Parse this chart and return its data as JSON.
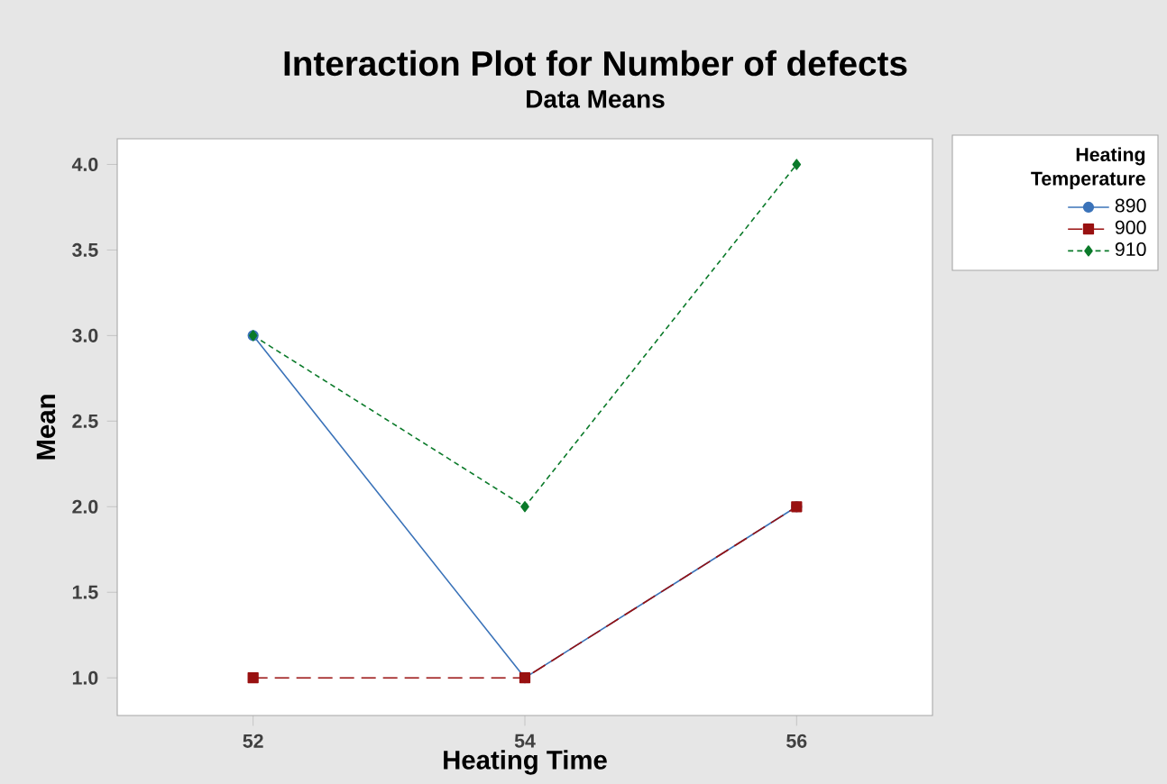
{
  "chart_data": {
    "type": "line",
    "title": "Interaction Plot for Number of defects",
    "subtitle": "Data Means",
    "xlabel": "Heating Time",
    "ylabel": "Mean",
    "legend_title": "Heating Temperature",
    "x": [
      52,
      54,
      56
    ],
    "series": [
      {
        "name": "890",
        "color": "#3b73b9",
        "values": [
          3,
          1,
          2
        ],
        "marker": "circle",
        "line_style": "solid"
      },
      {
        "name": "900",
        "color": "#991111",
        "values": [
          1,
          1,
          2
        ],
        "marker": "square",
        "line_style": "dashed"
      },
      {
        "name": "910",
        "color": "#0b7a2a",
        "values": [
          3,
          2,
          4
        ],
        "marker": "diamond",
        "line_style": "dotted"
      }
    ],
    "xlim": [
      51,
      57
    ],
    "xticks": [
      52,
      54,
      56
    ],
    "ylim": [
      0.78,
      4.15
    ],
    "yticks": [
      {
        "value": 1,
        "label": "1.0"
      },
      {
        "value": 1.5,
        "label": "1.5"
      },
      {
        "value": 2,
        "label": "2.0"
      },
      {
        "value": 2.5,
        "label": "2.5"
      },
      {
        "value": 3,
        "label": "3.0"
      },
      {
        "value": 3.5,
        "label": "3.5"
      },
      {
        "value": 4,
        "label": "4.0"
      }
    ],
    "grid": false,
    "legend": "right"
  }
}
